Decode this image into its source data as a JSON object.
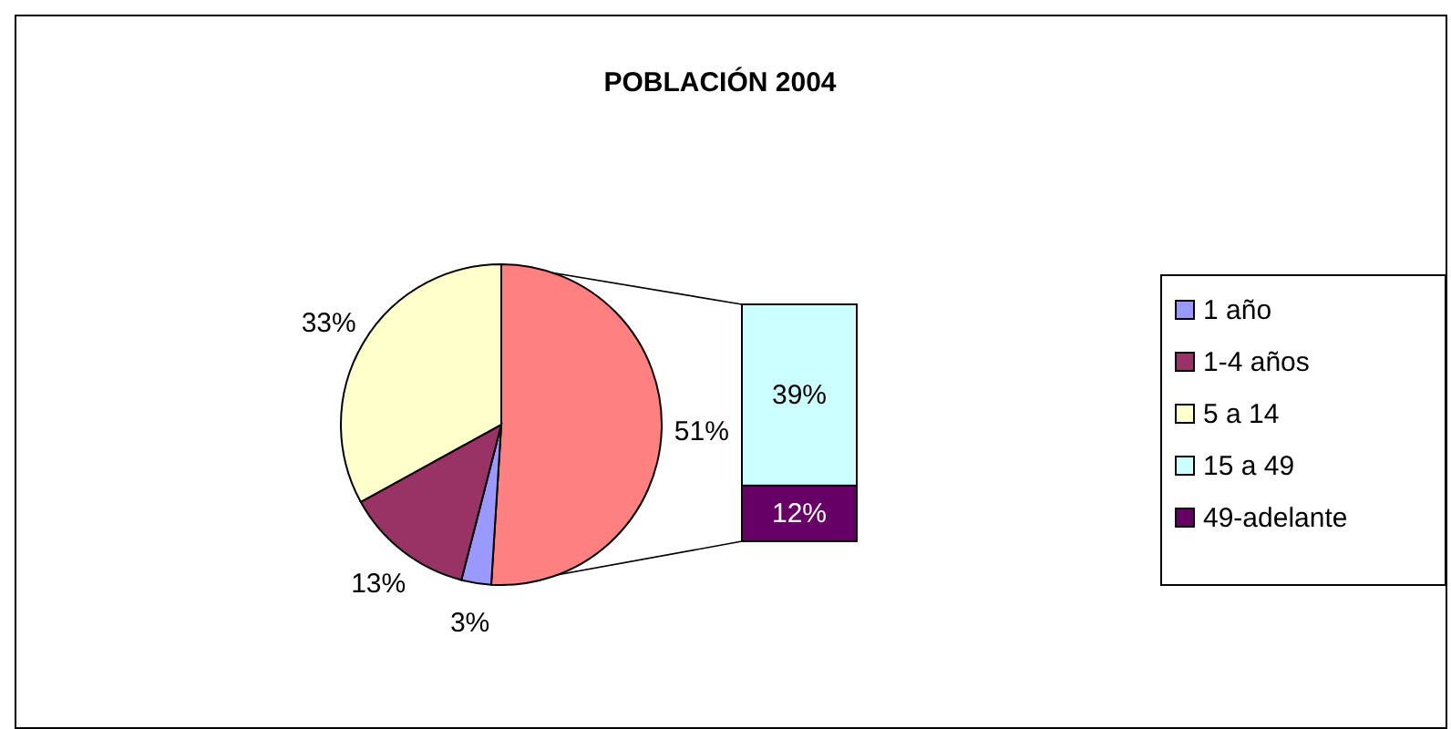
{
  "chart_data": [
    {
      "type": "pie",
      "title": "POBLACIÓN 2004",
      "categories": [
        null,
        "1 año",
        "1-4 años",
        "5 a 14"
      ],
      "values": [
        51,
        3,
        13,
        33
      ],
      "colors": [
        "#ff8080",
        "#9999ff",
        "#993366",
        "#ffffcc"
      ],
      "value_labels": [
        "51%",
        "3%",
        "13%",
        "33%"
      ],
      "legend": "right"
    },
    {
      "type": "bar",
      "stacked": true,
      "categories": [
        null
      ],
      "legend": "right",
      "series": [
        {
          "name": "49-adelante",
          "color": "#660066",
          "values": [
            12
          ],
          "value_labels": [
            "12%"
          ]
        },
        {
          "name": "15 a 49",
          "color": "#ccffff",
          "values": [
            39
          ],
          "value_labels": [
            "39%"
          ]
        }
      ]
    }
  ]
}
